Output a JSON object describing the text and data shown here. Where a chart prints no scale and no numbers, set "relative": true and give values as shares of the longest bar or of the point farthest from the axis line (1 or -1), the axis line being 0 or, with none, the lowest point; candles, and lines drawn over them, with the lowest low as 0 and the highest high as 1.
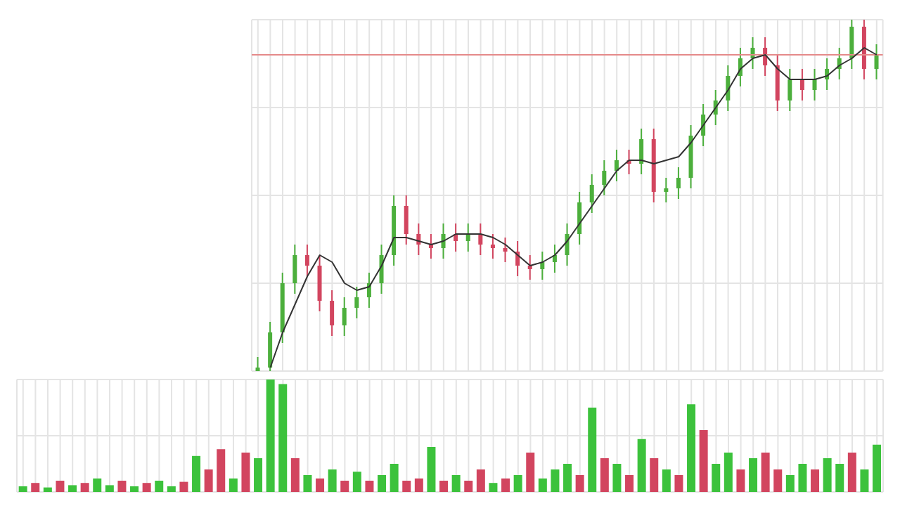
{
  "chart_data": [
    {
      "type": "candlestick",
      "relative": true,
      "grid": true,
      "categories": [
        null,
        null,
        null,
        null,
        null,
        null,
        null,
        null,
        null,
        null,
        null,
        null,
        null,
        null,
        null,
        null,
        null,
        null,
        null,
        null,
        null,
        null,
        null,
        null,
        null,
        null,
        null,
        null,
        null,
        null,
        null,
        null,
        null,
        null,
        null,
        null,
        null,
        null,
        null,
        null,
        null,
        null,
        null,
        null,
        null,
        null,
        null,
        null,
        null,
        null,
        null
      ],
      "ohlc": [
        [
          0,
          0.04,
          0,
          0.01
        ],
        [
          0.01,
          0.14,
          0,
          0.11
        ],
        [
          0.11,
          0.28,
          0.08,
          0.25
        ],
        [
          0.25,
          0.36,
          0.22,
          0.33
        ],
        [
          0.33,
          0.36,
          0.27,
          0.3
        ],
        [
          0.3,
          0.33,
          0.17,
          0.2
        ],
        [
          0.2,
          0.23,
          0.1,
          0.13
        ],
        [
          0.13,
          0.21,
          0.1,
          0.18
        ],
        [
          0.18,
          0.24,
          0.15,
          0.21
        ],
        [
          0.21,
          0.28,
          0.18,
          0.25
        ],
        [
          0.25,
          0.36,
          0.22,
          0.33
        ],
        [
          0.33,
          0.5,
          0.3,
          0.47
        ],
        [
          0.47,
          0.5,
          0.36,
          0.39
        ],
        [
          0.39,
          0.42,
          0.33,
          0.36
        ],
        [
          0.36,
          0.39,
          0.32,
          0.35
        ],
        [
          0.35,
          0.42,
          0.32,
          0.39
        ],
        [
          0.39,
          0.42,
          0.34,
          0.37
        ],
        [
          0.37,
          0.42,
          0.34,
          0.39
        ],
        [
          0.39,
          0.42,
          0.33,
          0.36
        ],
        [
          0.36,
          0.39,
          0.32,
          0.35
        ],
        [
          0.35,
          0.38,
          0.31,
          0.34
        ],
        [
          0.34,
          0.37,
          0.27,
          0.3
        ],
        [
          0.3,
          0.33,
          0.26,
          0.29
        ],
        [
          0.29,
          0.34,
          0.26,
          0.31
        ],
        [
          0.31,
          0.36,
          0.28,
          0.33
        ],
        [
          0.33,
          0.42,
          0.3,
          0.39
        ],
        [
          0.39,
          0.51,
          0.36,
          0.48
        ],
        [
          0.48,
          0.56,
          0.45,
          0.53
        ],
        [
          0.53,
          0.6,
          0.5,
          0.57
        ],
        [
          0.57,
          0.63,
          0.54,
          0.6
        ],
        [
          0.6,
          0.63,
          0.56,
          0.59
        ],
        [
          0.59,
          0.69,
          0.56,
          0.66
        ],
        [
          0.66,
          0.69,
          0.48,
          0.51
        ],
        [
          0.51,
          0.55,
          0.48,
          0.52
        ],
        [
          0.52,
          0.58,
          0.49,
          0.55
        ],
        [
          0.55,
          0.7,
          0.52,
          0.67
        ],
        [
          0.67,
          0.76,
          0.64,
          0.73
        ],
        [
          0.73,
          0.8,
          0.7,
          0.77
        ],
        [
          0.77,
          0.87,
          0.74,
          0.84
        ],
        [
          0.84,
          0.92,
          0.81,
          0.89
        ],
        [
          0.89,
          0.95,
          0.86,
          0.92
        ],
        [
          0.92,
          0.95,
          0.84,
          0.87
        ],
        [
          0.87,
          0.9,
          0.74,
          0.77
        ],
        [
          0.77,
          0.86,
          0.74,
          0.83
        ],
        [
          0.83,
          0.86,
          0.77,
          0.8
        ],
        [
          0.8,
          0.86,
          0.77,
          0.83
        ],
        [
          0.83,
          0.89,
          0.8,
          0.86
        ],
        [
          0.86,
          0.92,
          0.83,
          0.89
        ],
        [
          0.89,
          1,
          0.86,
          0.98
        ],
        [
          0.98,
          1,
          0.83,
          0.86
        ],
        [
          0.86,
          0.93,
          0.83,
          0.9
        ]
      ],
      "colors": [
        "#4caf3c",
        "#4caf3c",
        "#4caf3c",
        "#4caf3c",
        "#d2455f",
        "#d2455f",
        "#d2455f",
        "#4caf3c",
        "#4caf3c",
        "#4caf3c",
        "#4caf3c",
        "#4caf3c",
        "#d2455f",
        "#d2455f",
        "#d2455f",
        "#4caf3c",
        "#d2455f",
        "#4caf3c",
        "#d2455f",
        "#d2455f",
        "#d2455f",
        "#d2455f",
        "#d2455f",
        "#4caf3c",
        "#4caf3c",
        "#4caf3c",
        "#4caf3c",
        "#4caf3c",
        "#4caf3c",
        "#4caf3c",
        "#d2455f",
        "#4caf3c",
        "#d2455f",
        "#4caf3c",
        "#4caf3c",
        "#4caf3c",
        "#4caf3c",
        "#4caf3c",
        "#4caf3c",
        "#4caf3c",
        "#4caf3c",
        "#d2455f",
        "#d2455f",
        "#4caf3c",
        "#d2455f",
        "#4caf3c",
        "#4caf3c",
        "#4caf3c",
        "#4caf3c",
        "#d2455f",
        "#4caf3c"
      ],
      "series": [
        {
          "type": "line",
          "color": "#333333",
          "values": [
            null,
            0.01,
            0.11,
            0.19,
            0.27,
            0.33,
            0.31,
            0.25,
            0.23,
            0.24,
            0.3,
            0.38,
            0.38,
            0.37,
            0.36,
            0.37,
            0.39,
            0.39,
            0.39,
            0.38,
            0.36,
            0.33,
            0.3,
            0.31,
            0.33,
            0.37,
            0.42,
            0.47,
            0.52,
            0.57,
            0.6,
            0.6,
            0.59,
            0.6,
            0.61,
            0.65,
            0.7,
            0.75,
            0.8,
            0.86,
            0.89,
            0.9,
            0.86,
            0.83,
            0.83,
            0.83,
            0.84,
            0.87,
            0.89,
            0.92,
            0.9
          ]
        }
      ],
      "ref_lines": [
        {
          "axis": "y",
          "value": 0.9,
          "color": "#e58a8a"
        }
      ]
    },
    {
      "type": "bar",
      "relative": true,
      "grid": true,
      "categories": [
        null,
        null,
        null,
        null,
        null,
        null,
        null,
        null,
        null,
        null,
        null,
        null,
        null,
        null,
        null,
        null,
        null,
        null,
        null,
        null,
        null,
        null,
        null,
        null,
        null,
        null,
        null,
        null,
        null,
        null,
        null,
        null,
        null,
        null,
        null,
        null,
        null,
        null,
        null,
        null,
        null,
        null,
        null,
        null,
        null,
        null,
        null,
        null,
        null,
        null,
        null,
        null,
        null,
        null,
        null,
        null,
        null,
        null,
        null,
        null,
        null,
        null,
        null,
        null,
        null,
        null,
        null,
        null,
        null,
        null
      ],
      "values": [
        0.05,
        0.08,
        0.04,
        0.1,
        0.06,
        0.08,
        0.12,
        0.06,
        0.1,
        0.05,
        0.08,
        0.1,
        0.05,
        0.09,
        0.32,
        0.2,
        0.38,
        0.12,
        0.35,
        0.3,
        1,
        0.96,
        0.3,
        0.15,
        0.12,
        0.2,
        0.1,
        0.18,
        0.1,
        0.15,
        0.25,
        0.1,
        0.12,
        0.4,
        0.1,
        0.15,
        0.1,
        0.2,
        0.08,
        0.12,
        0.15,
        0.35,
        0.12,
        0.2,
        0.25,
        0.15,
        0.75,
        0.3,
        0.25,
        0.15,
        0.47,
        0.3,
        0.2,
        0.15,
        0.78,
        0.55,
        0.25,
        0.35,
        0.2,
        0.3,
        0.35,
        0.2,
        0.15,
        0.25,
        0.2,
        0.3,
        0.25,
        0.35,
        0.2,
        0.42
      ],
      "colors": [
        "#3cc23c",
        "#d2455f",
        "#3cc23c",
        "#d2455f",
        "#3cc23c",
        "#d2455f",
        "#3cc23c",
        "#3cc23c",
        "#d2455f",
        "#3cc23c",
        "#d2455f",
        "#3cc23c",
        "#3cc23c",
        "#d2455f",
        "#3cc23c",
        "#d2455f",
        "#d2455f",
        "#3cc23c",
        "#d2455f",
        "#3cc23c",
        "#3cc23c",
        "#3cc23c",
        "#d2455f",
        "#3cc23c",
        "#d2455f",
        "#3cc23c",
        "#d2455f",
        "#3cc23c",
        "#d2455f",
        "#3cc23c",
        "#3cc23c",
        "#d2455f",
        "#d2455f",
        "#3cc23c",
        "#d2455f",
        "#3cc23c",
        "#d2455f",
        "#d2455f",
        "#3cc23c",
        "#d2455f",
        "#3cc23c",
        "#d2455f",
        "#3cc23c",
        "#3cc23c",
        "#3cc23c",
        "#d2455f",
        "#3cc23c",
        "#d2455f",
        "#3cc23c",
        "#d2455f",
        "#3cc23c",
        "#d2455f",
        "#3cc23c",
        "#d2455f",
        "#3cc23c",
        "#d2455f",
        "#3cc23c",
        "#3cc23c",
        "#d2455f",
        "#3cc23c",
        "#d2455f",
        "#d2455f",
        "#3cc23c",
        "#3cc23c",
        "#d2455f",
        "#3cc23c",
        "#3cc23c",
        "#d2455f",
        "#3cc23c",
        "#3cc23c"
      ]
    }
  ]
}
